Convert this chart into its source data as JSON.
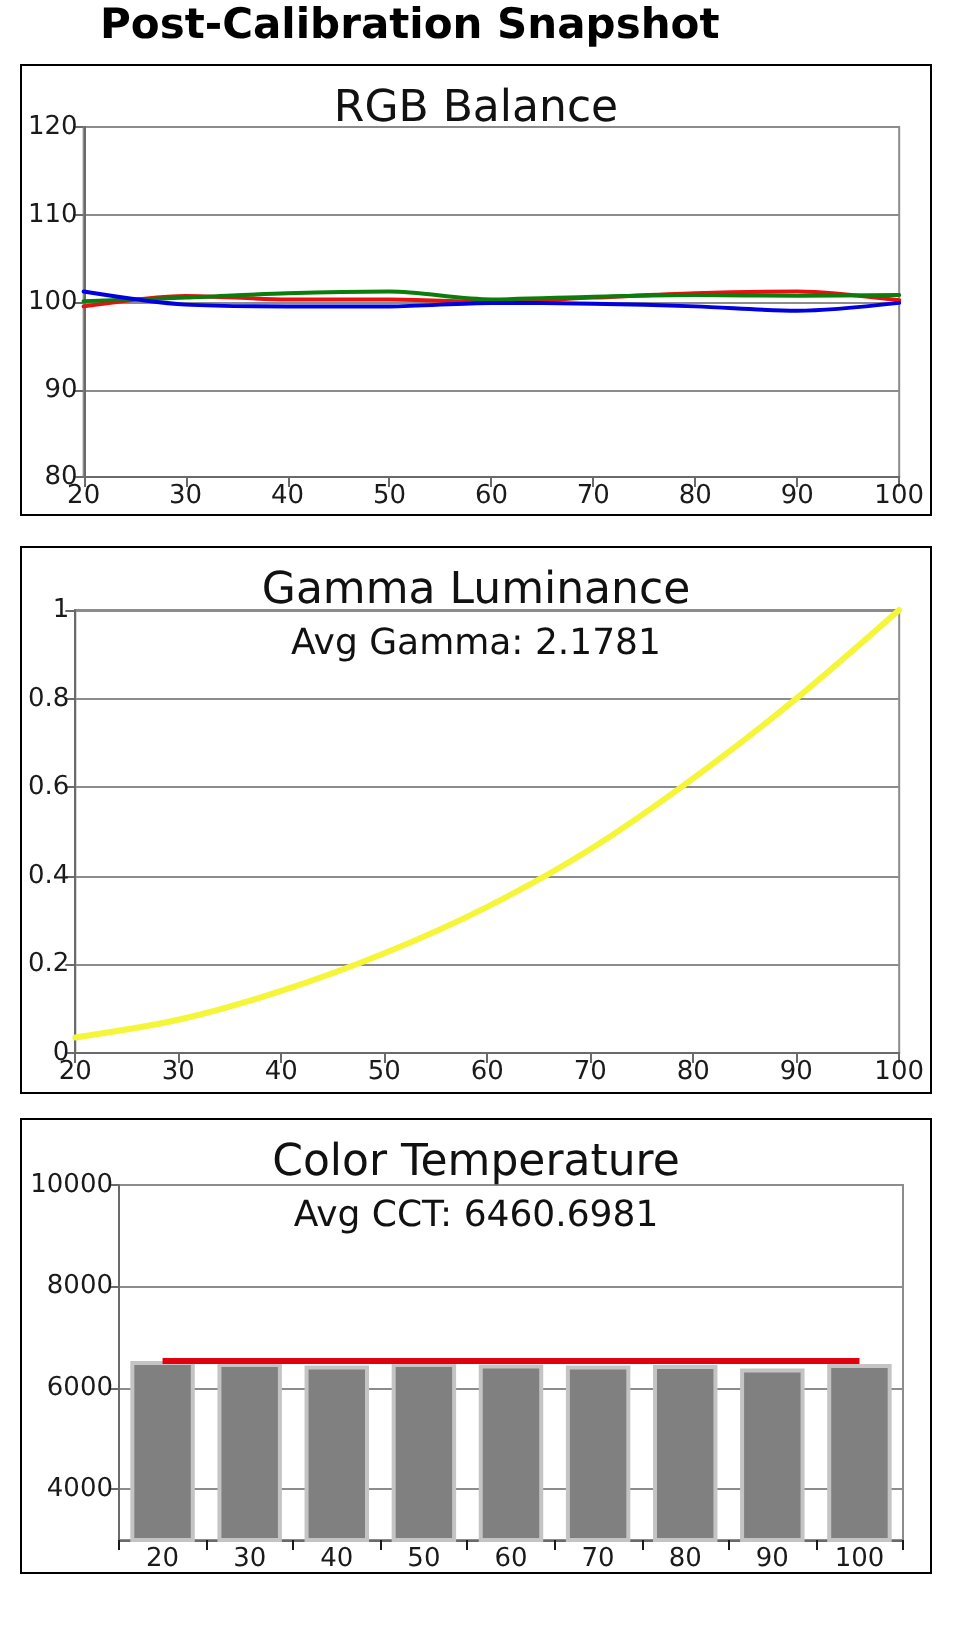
{
  "chart_data": [
    {
      "type": "other",
      "title": "Post-Calibration Snapshot"
    },
    {
      "type": "line",
      "title": "RGB Balance",
      "x": [
        20,
        30,
        40,
        50,
        60,
        70,
        80,
        90,
        100
      ],
      "series": [
        {
          "color": "#e81010",
          "values": [
            99.5,
            100.7,
            100.3,
            100.3,
            100,
            100.5,
            101,
            101.2,
            100.2
          ]
        },
        {
          "color": "#0a7d0a",
          "values": [
            100.1,
            100.5,
            101,
            101.2,
            100.3,
            100.6,
            100.8,
            100.7,
            100.8
          ]
        },
        {
          "color": "#0000e0",
          "values": [
            101.2,
            99.7,
            99.5,
            99.5,
            99.9,
            99.8,
            99.5,
            99,
            99.9
          ]
        }
      ],
      "xlim": [
        20,
        100
      ],
      "xticks": [
        20,
        30,
        40,
        50,
        60,
        70,
        80,
        90,
        100
      ],
      "ylim": [
        80,
        120
      ],
      "yticks": [
        80,
        90,
        100,
        110,
        120
      ],
      "grid": "y",
      "marker": "none"
    },
    {
      "type": "line",
      "title": "Gamma Luminance",
      "subtitle": "Avg Gamma: 2.1781",
      "x": [
        20,
        30,
        40,
        50,
        60,
        70,
        80,
        90,
        100
      ],
      "values": [
        0.035,
        0.075,
        0.14,
        0.225,
        0.33,
        0.46,
        0.62,
        0.8,
        1
      ],
      "color": "#f5f53a",
      "xlim": [
        20,
        100
      ],
      "xticks": [
        20,
        30,
        40,
        50,
        60,
        70,
        80,
        90,
        100
      ],
      "ylim": [
        0,
        1
      ],
      "yticks": [
        0,
        0.2,
        0.4,
        0.6,
        0.8,
        1
      ],
      "grid": "y",
      "marker": "none"
    },
    {
      "type": "bar",
      "title": "Color Temperature",
      "subtitle": "Avg CCT: 6460.6981",
      "categories": [
        "20",
        "30",
        "40",
        "50",
        "60",
        "70",
        "80",
        "90",
        "100"
      ],
      "values": [
        6530,
        6490,
        6440,
        6490,
        6460,
        6440,
        6450,
        6380,
        6470
      ],
      "color": "#808080",
      "ylim": [
        3000,
        10000
      ],
      "yticks": [
        4000,
        6000,
        8000,
        10000
      ],
      "grid": "y",
      "ref_lines": [
        {
          "axis": "y",
          "value": 6550,
          "color": "#e00010"
        }
      ]
    }
  ]
}
